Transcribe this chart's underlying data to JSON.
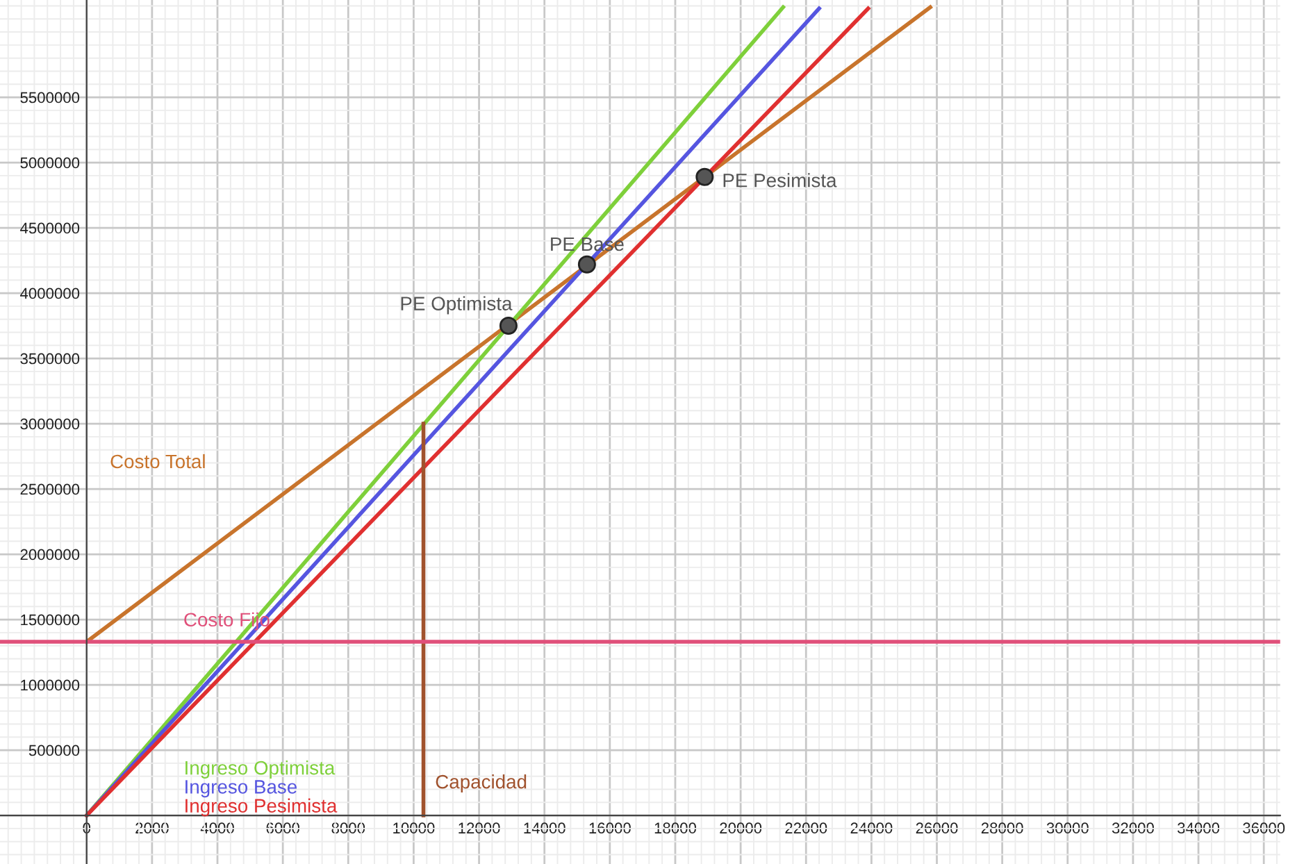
{
  "chart_data": {
    "type": "line",
    "series": [
      {
        "name": "Costo Total",
        "color": "#c8742c",
        "x": [
          0,
          25800
        ],
        "values": [
          1330000,
          6190000
        ]
      },
      {
        "name": "Ingreso Optimista",
        "color": "#7ed03a",
        "x": [
          0,
          21300
        ],
        "values": [
          0,
          6190000
        ]
      },
      {
        "name": "Ingreso Base",
        "color": "#5555e0",
        "x": [
          0,
          22400
        ],
        "values": [
          0,
          6180000
        ]
      },
      {
        "name": "Ingreso Pesimista",
        "color": "#e03030",
        "x": [
          0,
          23900
        ],
        "values": [
          0,
          6180000
        ]
      },
      {
        "name": "Capacidad",
        "color": "#a0522d",
        "x": [
          10300,
          10300
        ],
        "values": [
          0,
          3000000
        ]
      },
      {
        "type": "scatter",
        "color": "#555555",
        "x": [
          12900,
          15300,
          18900
        ],
        "values": [
          3750000,
          4220000,
          4890000
        ],
        "marker": "circle"
      }
    ],
    "ref_lines": [
      {
        "axis": "y",
        "value": 1330000,
        "label": "Costo Fijo",
        "color": "#e0507a"
      }
    ],
    "annotations": [
      {
        "text": "PE Optimista",
        "x": 12900,
        "y": 3750000
      },
      {
        "text": "PE Base",
        "x": 15300,
        "y": 4220000
      },
      {
        "text": "PE Pesimista",
        "x": 18900,
        "y": 4890000
      }
    ],
    "xlim": [
      -2650,
      36500
    ],
    "ylim": [
      -372000,
      6245000
    ],
    "xticks": [
      0,
      2000,
      4000,
      6000,
      8000,
      10000,
      12000,
      14000,
      16000,
      18000,
      20000,
      22000,
      24000,
      26000,
      28000,
      30000,
      32000,
      34000,
      36000
    ],
    "yticks": [
      {
        "value": 0,
        "label": null
      },
      500000,
      1000000,
      1500000,
      2000000,
      2500000,
      3000000,
      3500000,
      4000000,
      4500000,
      5000000,
      5500000
    ],
    "grid": true,
    "legend": "bottom left",
    "marker": "none",
    "line_style": "solid"
  }
}
